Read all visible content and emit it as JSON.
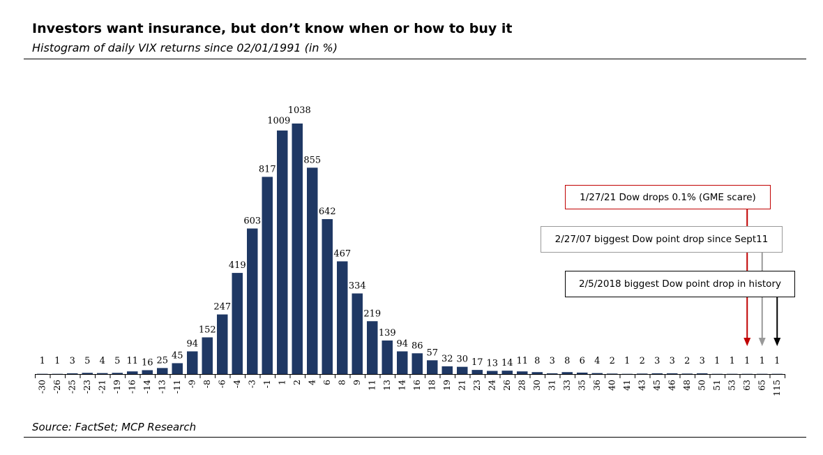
{
  "header": {
    "title": "Investors want insurance, but don’t know when or how to buy it",
    "subtitle": "Histogram of daily VIX returns since 02/01/1991 (in %)"
  },
  "footer": {
    "source": "Source: FactSet; MCP Research"
  },
  "annotations": [
    {
      "text": "1/27/21 Dow drops 0.1% (GME scare)",
      "color": "#c00000",
      "category": "63"
    },
    {
      "text": "2/27/07 biggest Dow point drop since Sept11",
      "color": "#999999",
      "category": "65"
    },
    {
      "text": "2/5/2018 biggest Dow point drop in history",
      "color": "#000000",
      "category": "115"
    }
  ],
  "chart_data": {
    "type": "bar",
    "title": "Histogram of daily VIX returns since 02/01/1991 (in %)",
    "bar_color": "#1f3864",
    "categories": [
      "-30",
      "-26",
      "-25",
      "-23",
      "-21",
      "-19",
      "-16",
      "-14",
      "-13",
      "-11",
      "-9",
      "-8",
      "-6",
      "-4",
      "-3",
      "-1",
      "1",
      "2",
      "4",
      "6",
      "8",
      "9",
      "11",
      "13",
      "14",
      "16",
      "18",
      "19",
      "21",
      "23",
      "24",
      "26",
      "28",
      "30",
      "31",
      "33",
      "35",
      "36",
      "40",
      "41",
      "43",
      "45",
      "46",
      "48",
      "50",
      "51",
      "53",
      "63",
      "65",
      "115"
    ],
    "values": [
      1,
      1,
      3,
      5,
      4,
      5,
      11,
      16,
      25,
      45,
      94,
      152,
      247,
      419,
      603,
      817,
      1009,
      1038,
      855,
      642,
      467,
      334,
      219,
      139,
      94,
      86,
      57,
      32,
      30,
      17,
      13,
      14,
      11,
      8,
      3,
      8,
      6,
      4,
      2,
      1,
      2,
      3,
      3,
      2,
      3,
      1,
      1,
      1,
      1,
      1
    ],
    "ylim": [
      0,
      1100
    ],
    "grid": false,
    "legend": "none"
  }
}
